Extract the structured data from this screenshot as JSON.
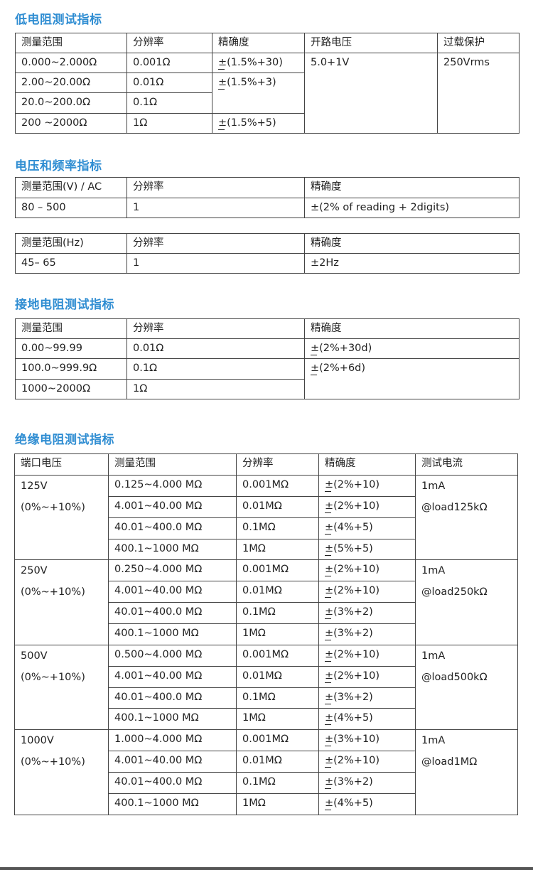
{
  "sections": [
    {
      "title": "低电阻测试指标",
      "tables": [
        {
          "columns": [
            "测量范围",
            "分辨率",
            "精确度",
            "开路电压",
            "过载保护"
          ],
          "rows": [
            [
              {
                "t": "0.000~2.000Ω"
              },
              {
                "t": "0.001Ω"
              },
              {
                "t": "±(1.5%+30)"
              },
              {
                "t": "5.0+1V",
                "rs": 4
              },
              {
                "t": "250Vrms",
                "rs": 4
              }
            ],
            [
              {
                "t": "2.00~20.00Ω"
              },
              {
                "t": "0.01Ω"
              },
              {
                "t": "±(1.5%+3)",
                "rs": 2
              }
            ],
            [
              {
                "t": "20.0~200.0Ω"
              },
              {
                "t": "0.1Ω"
              }
            ],
            [
              {
                "t": "200 ~2000Ω"
              },
              {
                "t": "1Ω"
              },
              {
                "t": "±(1.5%+5)"
              }
            ]
          ]
        }
      ]
    },
    {
      "title": "电压和频率指标",
      "tables": [
        {
          "columns": [
            "测量范围(V) / AC",
            "分辨率",
            "精确度"
          ],
          "rows": [
            [
              {
                "t": "80 – 500"
              },
              {
                "t": "1"
              },
              {
                "t": "±(2% of reading + 2digits)"
              }
            ]
          ]
        },
        {
          "columns": [
            "测量范围(Hz)",
            "分辨率",
            "精确度"
          ],
          "rows": [
            [
              {
                "t": "45– 65"
              },
              {
                "t": "1"
              },
              {
                "t": "±2Hz"
              }
            ]
          ]
        }
      ]
    },
    {
      "title": "接地电阻测试指标",
      "tables": [
        {
          "columns": [
            "测量范围",
            "分辨率",
            "精确度"
          ],
          "rows": [
            [
              {
                "t": "0.00~99.99"
              },
              {
                "t": "0.01Ω"
              },
              {
                "t": "±(2%+30d)"
              }
            ],
            [
              {
                "t": "100.0~999.9Ω"
              },
              {
                "t": "0.1Ω"
              },
              {
                "t": "±(2%+6d)",
                "rs": 2
              }
            ],
            [
              {
                "t": "1000~2000Ω"
              },
              {
                "t": "1Ω"
              }
            ]
          ]
        }
      ]
    },
    {
      "title": "绝缘电阻测试指标",
      "tables": [
        {
          "columns": [
            "端口电压",
            "测量范围",
            "分辨率",
            "精确度",
            "测试电流"
          ],
          "rows": [
            [
              {
                "t": "125V\n(0%~+10%)",
                "rs": 4
              },
              {
                "t": "0.125~4.000 MΩ"
              },
              {
                "t": "0.001MΩ"
              },
              {
                "t": "±(2%+10)"
              },
              {
                "t": "1mA\n@load125kΩ",
                "rs": 4
              }
            ],
            [
              {
                "t": "4.001~40.00 MΩ"
              },
              {
                "t": "0.01MΩ"
              },
              {
                "t": "±(2%+10)"
              }
            ],
            [
              {
                "t": "40.01~400.0 MΩ"
              },
              {
                "t": "0.1MΩ"
              },
              {
                "t": "±(4%+5)"
              }
            ],
            [
              {
                "t": "400.1~1000 MΩ"
              },
              {
                "t": "1MΩ"
              },
              {
                "t": "±(5%+5)"
              }
            ],
            [
              {
                "t": "250V\n(0%~+10%)",
                "rs": 4
              },
              {
                "t": "0.250~4.000 MΩ"
              },
              {
                "t": "0.001MΩ"
              },
              {
                "t": "±(2%+10)"
              },
              {
                "t": "1mA\n@load250kΩ",
                "rs": 4
              }
            ],
            [
              {
                "t": "4.001~40.00 MΩ"
              },
              {
                "t": "0.01MΩ"
              },
              {
                "t": "±(2%+10)"
              }
            ],
            [
              {
                "t": "40.01~400.0 MΩ"
              },
              {
                "t": "0.1MΩ"
              },
              {
                "t": "±(3%+2)"
              }
            ],
            [
              {
                "t": "400.1~1000 MΩ"
              },
              {
                "t": "1MΩ"
              },
              {
                "t": "±(3%+2)"
              }
            ],
            [
              {
                "t": "500V\n(0%~+10%)",
                "rs": 4
              },
              {
                "t": "0.500~4.000 MΩ"
              },
              {
                "t": "0.001MΩ"
              },
              {
                "t": "±(2%+10)"
              },
              {
                "t": "1mA\n@load500kΩ",
                "rs": 4
              }
            ],
            [
              {
                "t": "4.001~40.00 MΩ"
              },
              {
                "t": "0.01MΩ"
              },
              {
                "t": "±(2%+10)"
              }
            ],
            [
              {
                "t": "40.01~400.0 MΩ"
              },
              {
                "t": "0.1MΩ"
              },
              {
                "t": "±(3%+2)"
              }
            ],
            [
              {
                "t": "400.1~1000 MΩ"
              },
              {
                "t": "1MΩ"
              },
              {
                "t": "±(4%+5)"
              }
            ],
            [
              {
                "t": "1000V\n(0%~+10%)",
                "rs": 4
              },
              {
                "t": "1.000~4.000 MΩ"
              },
              {
                "t": "0.001MΩ"
              },
              {
                "t": "±(3%+10)"
              },
              {
                "t": "1mA\n@load1MΩ",
                "rs": 4
              }
            ],
            [
              {
                "t": "4.001~40.00 MΩ"
              },
              {
                "t": "0.01MΩ"
              },
              {
                "t": "±(2%+10)"
              }
            ],
            [
              {
                "t": "40.01~400.0 MΩ"
              },
              {
                "t": "0.1MΩ"
              },
              {
                "t": "±(3%+2)"
              }
            ],
            [
              {
                "t": "400.1~1000 MΩ"
              },
              {
                "t": "1MΩ"
              },
              {
                "t": "±(4%+5)"
              }
            ]
          ]
        }
      ]
    }
  ],
  "colors": {
    "title": "#2f8dd2",
    "border": "#444444"
  }
}
